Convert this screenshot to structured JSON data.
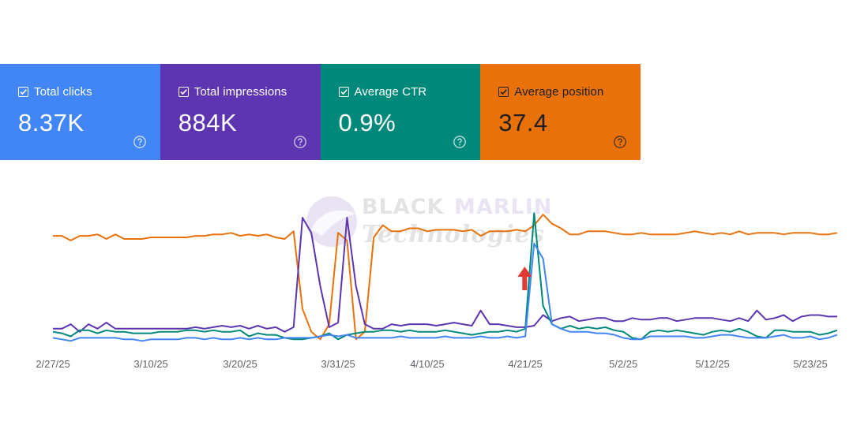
{
  "colors": {
    "clicks": "#4285f4",
    "impressions": "#5e35b1",
    "ctr": "#00897b",
    "position": "#e8710a",
    "arrow": "#e53935",
    "tick": "#5f6368"
  },
  "metrics": [
    {
      "key": "clicks",
      "label": "Total clicks",
      "value": "8.37K",
      "checked": true,
      "bg": "#4285f4"
    },
    {
      "key": "impressions",
      "label": "Total impressions",
      "value": "884K",
      "checked": true,
      "bg": "#5e35b1"
    },
    {
      "key": "ctr",
      "label": "Average CTR",
      "value": "0.9%",
      "checked": true,
      "bg": "#00897b"
    },
    {
      "key": "position",
      "label": "Average position",
      "value": "37.4",
      "checked": true,
      "bg": "#e8710a"
    }
  ],
  "watermark": {
    "line1_a": "BLACK",
    "line1_b": "MARLIN",
    "line2": "Technologies"
  },
  "chart_data": {
    "type": "line",
    "x_tick_labels": [
      "2/27/25",
      "3/10/25",
      "3/20/25",
      "3/31/25",
      "4/10/25",
      "4/21/25",
      "5/2/25",
      "5/12/25",
      "5/23/25"
    ],
    "x_tick_index": [
      0,
      11,
      21,
      32,
      42,
      53,
      64,
      74,
      85
    ],
    "x_range": [
      0,
      88
    ],
    "annotation": "red up arrow at 4/21/25",
    "annotation_index": 54,
    "series": [
      {
        "name": "Average position",
        "key": "position",
        "scale_range": [
          0,
          100
        ],
        "values": [
          73,
          73,
          70,
          73,
          73,
          74,
          71,
          74,
          71,
          71,
          71,
          72,
          72,
          72,
          72,
          72,
          73,
          73,
          74,
          74,
          75,
          73,
          74,
          73,
          74,
          72,
          71,
          76,
          25,
          10,
          5,
          15,
          75,
          70,
          5,
          10,
          72,
          80,
          76,
          76,
          78,
          78,
          76,
          77,
          77,
          77,
          76,
          77,
          73,
          76,
          76,
          76,
          77,
          76,
          80,
          87,
          81,
          78,
          74,
          74,
          76,
          76,
          76,
          75,
          74,
          74,
          75,
          74,
          74,
          74,
          74,
          75,
          76,
          75,
          74,
          75,
          74,
          76,
          74,
          75,
          75,
          75,
          74,
          75,
          75,
          75,
          74,
          74,
          75
        ]
      },
      {
        "name": "Total impressions",
        "key": "impressions",
        "scale_range": [
          0,
          100
        ],
        "values": [
          12,
          12,
          15,
          10,
          15,
          12,
          16,
          12,
          12,
          12,
          12,
          12,
          12,
          12,
          12,
          12,
          13,
          12,
          13,
          14,
          13,
          14,
          12,
          14,
          12,
          13,
          10,
          13,
          85,
          75,
          40,
          13,
          16,
          85,
          40,
          15,
          12,
          12,
          15,
          14,
          15,
          15,
          15,
          14,
          15,
          16,
          15,
          14,
          24,
          15,
          15,
          14,
          13,
          13,
          14,
          21,
          17,
          19,
          20,
          17,
          18,
          19,
          19,
          17,
          17,
          19,
          18,
          18,
          19,
          19,
          17,
          18,
          19,
          19,
          19,
          18,
          17,
          19,
          17,
          24,
          18,
          19,
          21,
          17,
          20,
          21,
          21,
          20,
          20
        ]
      },
      {
        "name": "Average CTR",
        "key": "ctr",
        "scale_range": [
          0,
          100
        ],
        "values": [
          10,
          9,
          7,
          11,
          11,
          9,
          11,
          10,
          10,
          9,
          9,
          9,
          10,
          10,
          10,
          11,
          11,
          10,
          11,
          10,
          10,
          11,
          7,
          9,
          8,
          8,
          6,
          5,
          5,
          6,
          7,
          9,
          5,
          8,
          9,
          10,
          10,
          11,
          11,
          10,
          11,
          10,
          10,
          10,
          11,
          10,
          9,
          8,
          9,
          10,
          10,
          11,
          10,
          12,
          88,
          27,
          15,
          12,
          14,
          12,
          13,
          12,
          13,
          11,
          10,
          6,
          5,
          10,
          11,
          10,
          11,
          10,
          9,
          8,
          10,
          11,
          10,
          12,
          10,
          7,
          6,
          11,
          11,
          10,
          10,
          10,
          8,
          9,
          11
        ]
      },
      {
        "name": "Total clicks",
        "key": "clicks",
        "scale_range": [
          0,
          100
        ],
        "values": [
          6,
          5,
          4,
          6,
          6,
          6,
          6,
          6,
          5,
          5,
          4,
          5,
          5,
          5,
          5,
          6,
          6,
          5,
          6,
          5,
          5,
          6,
          5,
          6,
          5,
          5,
          6,
          6,
          6,
          6,
          7,
          8,
          7,
          8,
          6,
          6,
          6,
          6,
          6,
          7,
          6,
          6,
          6,
          6,
          7,
          6,
          6,
          6,
          7,
          6,
          6,
          7,
          6,
          7,
          68,
          58,
          15,
          12,
          10,
          10,
          10,
          9,
          9,
          8,
          6,
          5,
          5,
          7,
          7,
          7,
          7,
          7,
          6,
          6,
          7,
          8,
          8,
          7,
          6,
          6,
          6,
          7,
          8,
          6,
          6,
          7,
          5,
          6,
          8
        ]
      }
    ]
  }
}
